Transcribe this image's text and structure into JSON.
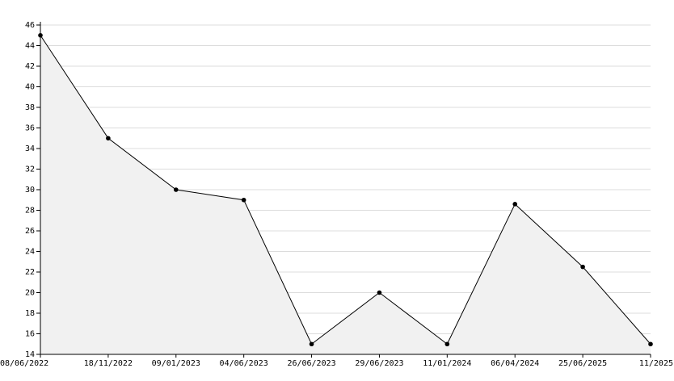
{
  "chart_data": {
    "type": "area",
    "categories": [
      "08/06/2022",
      "18/11/2022",
      "09/01/2023",
      "04/06/2023",
      "26/06/2023",
      "29/06/2023",
      "11/01/2024",
      "06/04/2024",
      "25/06/2025",
      "11/2025"
    ],
    "values": [
      45,
      35,
      30,
      29,
      15,
      20,
      15,
      28.6,
      22.5,
      15
    ],
    "color": "#000000",
    "fill": "#f1f1f1",
    "ylim": [
      14,
      46
    ],
    "yticks": [
      14,
      16,
      18,
      20,
      22,
      24,
      26,
      28,
      30,
      32,
      34,
      36,
      38,
      40,
      42,
      44,
      46
    ],
    "grid": true
  }
}
